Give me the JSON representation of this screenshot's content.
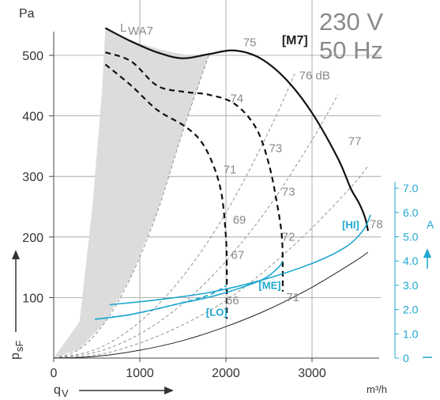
{
  "chart_data": {
    "type": "line",
    "title": [
      "230 V",
      "50 Hz"
    ],
    "xlabel": "q",
    "xlabel_sub": "V",
    "xunit": "m³/h",
    "ylabel": "p",
    "ylabel_sub": "sF",
    "yunit": "Pa",
    "y2unit": "A",
    "xlim": [
      0,
      3800
    ],
    "ylim": [
      0,
      600
    ],
    "y2lim": [
      0,
      7.5
    ],
    "xticks": [
      "0",
      "1000",
      "2000",
      "3000"
    ],
    "yticks": [
      "100",
      "200",
      "300",
      "400",
      "500"
    ],
    "y2ticks": [
      "0",
      "1.0",
      "2.0",
      "3.0",
      "4.0",
      "5.0",
      "6.0",
      "7.0"
    ],
    "grid": true,
    "lwa_label": "L",
    "lwa_sub": "WA7",
    "pressure_series": [
      {
        "name": "[M7]",
        "style": "solid-bold",
        "x": [
          600,
          900,
          1200,
          1500,
          1800,
          2100,
          2400,
          2700,
          3000,
          3300,
          3450,
          3550,
          3620,
          3650
        ],
        "y": [
          545,
          523,
          505,
          495,
          502,
          508,
          495,
          460,
          405,
          330,
          280,
          255,
          230,
          210
        ]
      },
      {
        "name": "",
        "style": "dashed-bold",
        "x": [
          600,
          900,
          1200,
          1500,
          1800,
          2100,
          2350,
          2500,
          2600,
          2650,
          2660,
          2660
        ],
        "y": [
          505,
          490,
          450,
          440,
          435,
          420,
          380,
          320,
          250,
          200,
          150,
          110
        ]
      },
      {
        "name": "",
        "style": "dashed-bold",
        "x": [
          600,
          900,
          1200,
          1500,
          1700,
          1850,
          1950,
          2000,
          2010,
          2010
        ],
        "y": [
          485,
          450,
          410,
          385,
          360,
          320,
          270,
          200,
          150,
          65
        ]
      },
      {
        "name": "",
        "style": "system-dashed",
        "x": [
          0,
          300,
          600,
          900,
          1200,
          1500,
          1800
        ],
        "y": [
          0,
          15,
          60,
          135,
          240,
          375,
          500
        ]
      },
      {
        "name": "",
        "style": "system-dashed",
        "x": [
          0,
          500,
          1000,
          1500,
          2000,
          2500,
          2800
        ],
        "y": [
          0,
          15,
          60,
          135,
          240,
          375,
          470
        ]
      },
      {
        "name": "",
        "style": "system-dashed",
        "x": [
          0,
          500,
          1000,
          1500,
          2000,
          2500,
          3000,
          3300
        ],
        "y": [
          0,
          10,
          40,
          90,
          160,
          250,
          360,
          435
        ]
      },
      {
        "name": "",
        "style": "system-dashed",
        "x": [
          0,
          500,
          1000,
          1500,
          2000,
          2500,
          3000,
          3500,
          3650
        ],
        "y": [
          0,
          5,
          25,
          55,
          95,
          150,
          215,
          290,
          318
        ]
      },
      {
        "name": "",
        "style": "system-solid",
        "x": [
          0,
          500,
          1000,
          1500,
          2000,
          2500,
          3000,
          3500,
          3650
        ],
        "y": [
          0,
          3,
          13,
          29,
          52,
          81,
          117,
          160,
          175
        ]
      }
    ],
    "current_series": [
      {
        "name": "[HI]",
        "style": "solid",
        "x": [
          650,
          1200,
          1800,
          2400,
          3000,
          3400,
          3600,
          3680
        ],
        "y": [
          2.2,
          2.4,
          2.7,
          3.2,
          3.9,
          4.6,
          5.3,
          5.9
        ]
      },
      {
        "name": "[ME]",
        "style": "solid",
        "x": [
          480,
          900,
          1400,
          1900,
          2400,
          2600,
          2660
        ],
        "y": [
          1.6,
          1.8,
          2.2,
          2.6,
          3.2,
          3.7,
          4.0
        ]
      },
      {
        "name": "[LO]",
        "style": "dashed",
        "x": [
          480,
          900,
          1400,
          1800,
          2010
        ],
        "y": [
          1.6,
          1.8,
          2.2,
          2.6,
          3.0
        ]
      }
    ],
    "sound_levels": [
      {
        "text": "75",
        "x": 2200,
        "y": 515
      },
      {
        "text": "76 dB",
        "x": 2850,
        "y": 460
      },
      {
        "text": "74",
        "x": 2050,
        "y": 422
      },
      {
        "text": "77",
        "x": 3420,
        "y": 352
      },
      {
        "text": "73",
        "x": 2500,
        "y": 340
      },
      {
        "text": "71",
        "x": 1970,
        "y": 305
      },
      {
        "text": "73",
        "x": 2650,
        "y": 268
      },
      {
        "text": "69",
        "x": 2080,
        "y": 222
      },
      {
        "text": "72",
        "x": 2650,
        "y": 194
      },
      {
        "text": "78",
        "x": 3670,
        "y": 215
      },
      {
        "text": "67",
        "x": 2060,
        "y": 164
      },
      {
        "text": "66",
        "x": 2000,
        "y": 89
      },
      {
        "text": "71",
        "x": 2700,
        "y": 94
      }
    ],
    "bold_labels": [
      {
        "text": "[M7]",
        "x": 2650,
        "y": 518
      }
    ],
    "blue_labels": [
      {
        "text": "[HI]",
        "x": 3350,
        "y": 5.35
      },
      {
        "text": "[ME]",
        "x": 2380,
        "y": 2.85
      },
      {
        "text": "[LO]",
        "x": 1770,
        "y": 1.75
      }
    ]
  }
}
